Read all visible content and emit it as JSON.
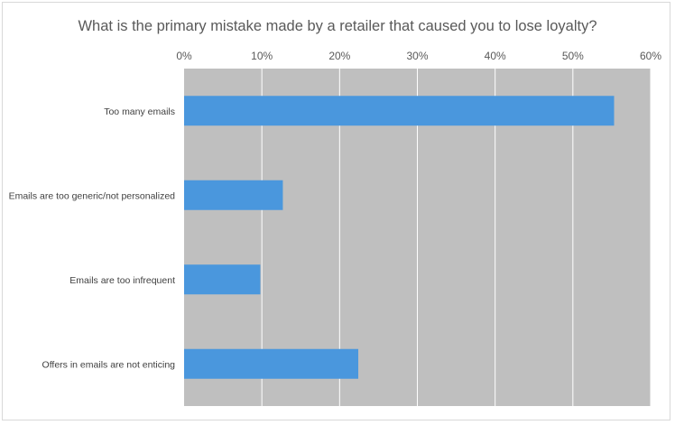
{
  "chart_data": {
    "type": "bar",
    "orientation": "horizontal",
    "title": "What is the primary mistake made by a retailer that caused you to lose loyalty?",
    "categories": [
      "Too many emails",
      "Emails are too generic/not personalized",
      "Emails are too infrequent",
      "Offers in emails are not enticing"
    ],
    "values": [
      55.3,
      12.7,
      9.8,
      22.4
    ],
    "xlim": [
      0,
      60
    ],
    "xticks": [
      0,
      10,
      20,
      30,
      40,
      50,
      60
    ],
    "tick_suffix": "%",
    "xaxis_position": "top",
    "grid": true,
    "legend": "none",
    "colors": {
      "bar": "#4a97dd",
      "plot_background": "#bfbfbf",
      "gridline": "#ffffff",
      "text": "#595959"
    }
  }
}
